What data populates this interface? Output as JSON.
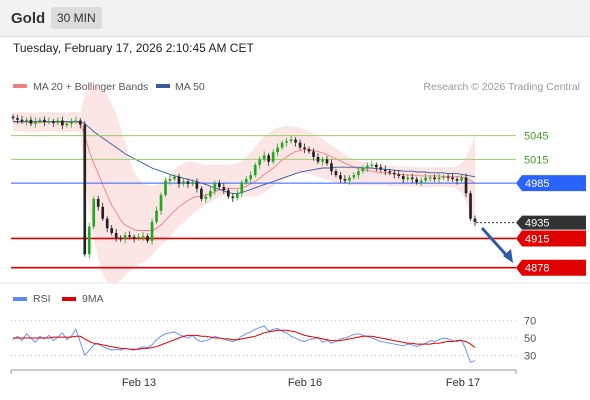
{
  "header": {
    "asset": "Gold",
    "timeframe": "30 MIN",
    "timestamp": "Tuesday, February 17, 2026 2:10:45 AM CET"
  },
  "legend": {
    "ma20_bb": "MA 20 + Bollinger Bands",
    "ma50": "MA 50",
    "copyright": "Research © 2026 Trading Central",
    "rsi": "RSI",
    "ma9": "9MA"
  },
  "colors": {
    "bullish": "#22a722",
    "bearish": "#222222",
    "bollinger": "#f6b5b5",
    "ma20": "#f08080",
    "ma50": "#3a5a9a",
    "support": "#e00000",
    "resistance": "#9ccc65",
    "pivot": "#2962ff",
    "rsi_line": "#5b8def",
    "rsi_ma": "#e00000",
    "arrow": "#2e5aa8"
  },
  "chart_data": [
    {
      "type": "candlestick",
      "title": "Gold 30 MIN",
      "x_ticks": [
        "Feb 13",
        "Feb 16",
        "Feb 17"
      ],
      "ylim": [
        4865,
        5090
      ],
      "levels": [
        {
          "value": 5045,
          "label": "5045",
          "role": "resistance"
        },
        {
          "value": 5015,
          "label": "5015",
          "role": "resistance"
        },
        {
          "value": 4985,
          "label": "4985",
          "role": "pivot"
        },
        {
          "value": 4935,
          "label": "4935",
          "role": "last"
        },
        {
          "value": 4915,
          "label": "4915",
          "role": "support"
        },
        {
          "value": 4878,
          "label": "4878",
          "role": "support"
        }
      ],
      "close_path": [
        5067,
        5065,
        5063,
        5065,
        5060,
        5063,
        5065,
        5062,
        5063,
        5061,
        5064,
        5058,
        5060,
        5063,
        5064,
        5059,
        4895,
        4930,
        4965,
        4955,
        4940,
        4928,
        4922,
        4916,
        4914,
        4919,
        4917,
        4915,
        4917,
        4918,
        4912,
        4936,
        4950,
        4970,
        4988,
        4990,
        4993,
        4984,
        4987,
        4984,
        4986,
        4978,
        4965,
        4968,
        4975,
        4985,
        4980,
        4976,
        4968,
        4966,
        4972,
        4986,
        4990,
        4995,
        5008,
        5015,
        5020,
        5012,
        5024,
        5030,
        5036,
        5038,
        5040,
        5036,
        5030,
        5028,
        5025,
        5018,
        5012,
        5015,
        5010,
        5000,
        4995,
        4990,
        4988,
        4992,
        4995,
        5000,
        5004,
        5007,
        5008,
        5005,
        5002,
        5000,
        4998,
        4996,
        4994,
        4990,
        4992,
        4990,
        4986,
        4988,
        4992,
        4992,
        4990,
        4992,
        4993,
        4992,
        4990,
        4988,
        4992,
        4972,
        4940,
        4936
      ],
      "ma20": [
        5062,
        5062,
        5062,
        5062,
        5061,
        5061,
        5062,
        5062,
        5062,
        5062,
        5062,
        5061,
        5061,
        5062,
        5062,
        5061,
        5045,
        5025,
        5010,
        4997,
        4983,
        4970,
        4957,
        4948,
        4938,
        4932,
        4929,
        4926,
        4925,
        4925,
        4925,
        4925,
        4928,
        4932,
        4938,
        4944,
        4950,
        4955,
        4959,
        4963,
        4966,
        4968,
        4968,
        4970,
        4972,
        4974,
        4976,
        4977,
        4978,
        4978,
        4978,
        4979,
        4981,
        4984,
        4987,
        4991,
        4996,
        5000,
        5004,
        5009,
        5014,
        5018,
        5022,
        5025,
        5026,
        5027,
        5027,
        5026,
        5025,
        5023,
        5021,
        5018,
        5016,
        5013,
        5010,
        5008,
        5005,
        5003,
        5002,
        5001,
        5000,
        4999,
        4998,
        4998,
        4997,
        4997,
        4996,
        4996,
        4995,
        4995,
        4995,
        4994,
        4994,
        4994,
        4994,
        4994,
        4993,
        4993,
        4993,
        4993,
        4993,
        4991,
        4988,
        4985
      ],
      "bb_upper": [
        5075,
        5075,
        5075,
        5075,
        5074,
        5074,
        5075,
        5075,
        5075,
        5074,
        5075,
        5074,
        5074,
        5075,
        5075,
        5074,
        5095,
        5105,
        5110,
        5108,
        5104,
        5096,
        5085,
        5072,
        5055,
        5038,
        5015,
        4998,
        4990,
        4985,
        4982,
        4982,
        4982,
        4985,
        4990,
        4996,
        5002,
        5007,
        5010,
        5012,
        5012,
        5011,
        5009,
        5008,
        5008,
        5008,
        5008,
        5008,
        5008,
        5009,
        5010,
        5013,
        5018,
        5024,
        5031,
        5038,
        5044,
        5048,
        5052,
        5055,
        5056,
        5057,
        5057,
        5056,
        5055,
        5053,
        5050,
        5047,
        5044,
        5041,
        5037,
        5033,
        5029,
        5025,
        5021,
        5018,
        5015,
        5013,
        5012,
        5011,
        5010,
        5009,
        5008,
        5008,
        5007,
        5007,
        5006,
        5006,
        5006,
        5005,
        5005,
        5005,
        5005,
        5005,
        5005,
        5005,
        5005,
        5005,
        5005,
        5006,
        5010,
        5018,
        5030,
        5045
      ],
      "bb_lower": [
        5050,
        5050,
        5050,
        5050,
        5049,
        5049,
        5050,
        5050,
        5050,
        5050,
        5050,
        5049,
        5049,
        5050,
        5050,
        5049,
        4990,
        4950,
        4915,
        4890,
        4870,
        4860,
        4858,
        4858,
        4862,
        4868,
        4873,
        4878,
        4882,
        4885,
        4889,
        4894,
        4900,
        4906,
        4912,
        4918,
        4924,
        4930,
        4935,
        4940,
        4945,
        4950,
        4955,
        4958,
        4961,
        4964,
        4967,
        4970,
        4972,
        4972,
        4971,
        4970,
        4969,
        4968,
        4968,
        4970,
        4973,
        4977,
        4981,
        4985,
        4988,
        4991,
        4994,
        4996,
        4997,
        4997,
        4996,
        4995,
        4993,
        4991,
        4989,
        4987,
        4986,
        4985,
        4984,
        4983,
        4982,
        4982,
        4982,
        4982,
        4982,
        4982,
        4982,
        4982,
        4981,
        4981,
        4981,
        4981,
        4981,
        4980,
        4980,
        4980,
        4980,
        4980,
        4980,
        4980,
        4980,
        4980,
        4980,
        4978,
        4972,
        4962,
        4945,
        4925
      ],
      "ma50": [
        5063,
        5063,
        5063,
        5063,
        5063,
        5063,
        5063,
        5063,
        5063,
        5063,
        5063,
        5063,
        5063,
        5063,
        5063,
        5063,
        5060,
        5055,
        5050,
        5046,
        5042,
        5038,
        5034,
        5030,
        5026,
        5022,
        5019,
        5016,
        5013,
        5010,
        5007,
        5004,
        5002,
        5000,
        4998,
        4996,
        4994,
        4993,
        4991,
        4990,
        4988,
        4987,
        4985,
        4983,
        4981,
        4979,
        4977,
        4975,
        4973,
        4972,
        4972,
        4973,
        4975,
        4977,
        4979,
        4981,
        4983,
        4985,
        4987,
        4989,
        4991,
        4993,
        4995,
        4997,
        4999,
        5000,
        5001,
        5002,
        5003,
        5004,
        5004,
        5004,
        5005,
        5005,
        5005,
        5005,
        5005,
        5005,
        5004,
        5004,
        5004,
        5003,
        5003,
        5002,
        5002,
        5001,
        5001,
        5000,
        5000,
        5000,
        4999,
        4999,
        4999,
        4998,
        4998,
        4998,
        4998,
        4997,
        4997,
        4997,
        4996,
        4995,
        4994,
        4993
      ]
    },
    {
      "type": "line",
      "title": "RSI",
      "series_names": [
        "RSI",
        "9MA"
      ],
      "ylim": [
        20,
        80
      ],
      "y_ticks": [
        70,
        50,
        30
      ],
      "rsi": [
        48,
        52,
        47,
        55,
        50,
        45,
        52,
        49,
        53,
        47,
        51,
        56,
        48,
        52,
        60,
        45,
        30,
        36,
        42,
        44,
        40,
        38,
        36,
        37,
        36,
        38,
        37,
        36,
        38,
        40,
        39,
        42,
        48,
        52,
        55,
        56,
        57,
        54,
        52,
        50,
        53,
        48,
        46,
        47,
        49,
        52,
        50,
        49,
        47,
        46,
        48,
        52,
        55,
        57,
        60,
        62,
        64,
        58,
        60,
        61,
        58,
        56,
        52,
        50,
        47,
        46,
        48,
        49,
        51,
        45,
        47,
        44,
        46,
        49,
        50,
        52,
        54,
        55,
        53,
        52,
        50,
        48,
        46,
        45,
        44,
        43,
        42,
        41,
        43,
        42,
        40,
        42,
        44,
        47,
        46,
        48,
        50,
        49,
        47,
        46,
        48,
        36,
        22,
        24
      ],
      "ma9": [
        50,
        50,
        50,
        50,
        50,
        50,
        50,
        50,
        50,
        51,
        51,
        51,
        51,
        51,
        52,
        52,
        49,
        46,
        44,
        43,
        42,
        41,
        40,
        39,
        38,
        38,
        37,
        37,
        37,
        38,
        38,
        39,
        40,
        42,
        44,
        46,
        48,
        50,
        52,
        53,
        53,
        53,
        52,
        52,
        51,
        50,
        50,
        49,
        49,
        48,
        48,
        49,
        50,
        51,
        52,
        54,
        56,
        57,
        58,
        59,
        59,
        59,
        58,
        57,
        55,
        53,
        52,
        51,
        50,
        49,
        48,
        47,
        47,
        47,
        48,
        49,
        50,
        51,
        52,
        52,
        52,
        51,
        50,
        49,
        48,
        47,
        46,
        45,
        44,
        44,
        43,
        43,
        43,
        43,
        44,
        44,
        45,
        46,
        46,
        47,
        47,
        46,
        43,
        39
      ]
    }
  ]
}
